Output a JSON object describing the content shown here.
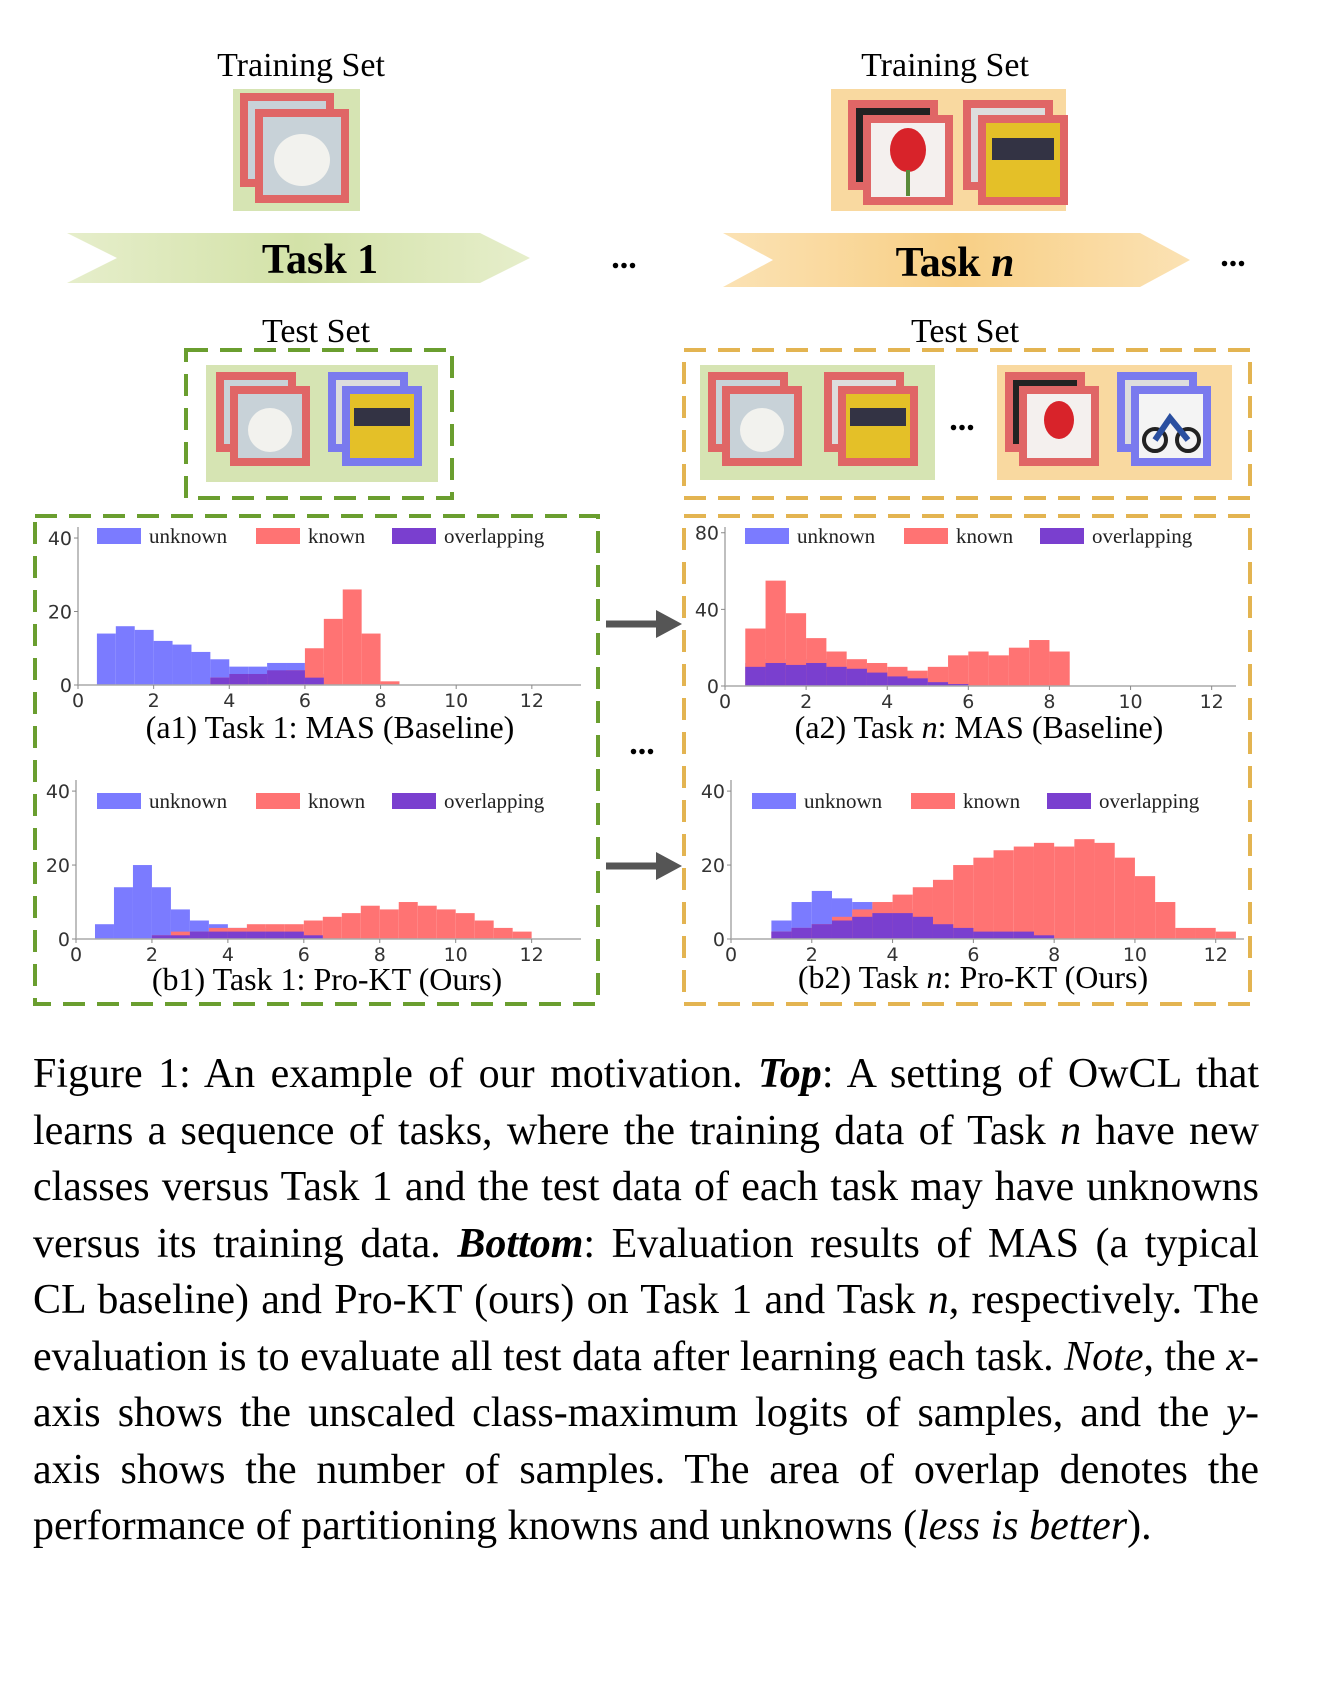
{
  "diagram": {
    "tasks": [
      {
        "name": [
          "Task 1"
        ],
        "training_set": "Training Set",
        "test_set": "Test Set"
      },
      {
        "name": [
          "Task ",
          "n"
        ],
        "training_set": "Training Set",
        "test_set": "Test Set"
      }
    ],
    "ellipsis": [
      "...",
      "...",
      "...",
      "..."
    ]
  },
  "chart_data": [
    {
      "type": "histogram",
      "title": [
        "(a1) Task 1: MAS (Baseline)"
      ],
      "bins": [
        0,
        0.5,
        1,
        1.5,
        2,
        2.5,
        3,
        3.5,
        4,
        4.5,
        5,
        5.5,
        6,
        6.5,
        7,
        7.5,
        8,
        8.5,
        9,
        9.5,
        10,
        10.5,
        11,
        11.5,
        12,
        12.5
      ],
      "series": [
        {
          "name": "unknown",
          "color": "#7b7bff",
          "values": [
            0,
            14,
            16,
            15,
            12,
            11,
            9,
            7,
            5,
            5,
            6,
            6,
            3,
            0,
            0,
            0,
            0,
            0,
            0,
            0,
            0,
            0,
            0,
            0,
            0
          ]
        },
        {
          "name": "known",
          "color": "#ff7373",
          "values": [
            0,
            0,
            0,
            0,
            0,
            0,
            0,
            2,
            2,
            2,
            2,
            4,
            10,
            18,
            26,
            14,
            1,
            0,
            0,
            0,
            0,
            0,
            0,
            0,
            0
          ]
        },
        {
          "name": "overlapping",
          "color": "#7a3fcf",
          "values": [
            0,
            0,
            0,
            0,
            0,
            0,
            0,
            2,
            3,
            3,
            4,
            4,
            2,
            0,
            0,
            0,
            0,
            0,
            0,
            0,
            0,
            0,
            0,
            0,
            0
          ]
        }
      ],
      "xlim": [
        0,
        13.3
      ],
      "xticks": [
        0,
        2,
        4,
        6,
        8,
        10,
        12
      ],
      "ylim": [
        0,
        43
      ],
      "yticks": [
        0,
        20,
        40
      ],
      "legend": "top"
    },
    {
      "type": "histogram",
      "title": [
        "(a2) Task ",
        "n",
        ": MAS (Baseline)"
      ],
      "bins": [
        0,
        0.5,
        1,
        1.5,
        2,
        2.5,
        3,
        3.5,
        4,
        4.5,
        5,
        5.5,
        6,
        6.5,
        7,
        7.5,
        8,
        8.5,
        9,
        9.5,
        10,
        10.5,
        11,
        11.5,
        12,
        12.5
      ],
      "series": [
        {
          "name": "unknown",
          "color": "#7b7bff",
          "values": [
            0,
            12,
            14,
            12,
            14,
            12,
            10,
            8,
            6,
            5,
            3,
            2,
            0,
            0,
            0,
            0,
            0,
            0,
            0,
            0,
            0,
            0,
            0,
            0,
            0
          ]
        },
        {
          "name": "known",
          "color": "#ff7373",
          "values": [
            0,
            30,
            55,
            38,
            25,
            18,
            14,
            12,
            10,
            8,
            10,
            16,
            18,
            16,
            20,
            24,
            18,
            0,
            0,
            0,
            0,
            0,
            0,
            0,
            0
          ]
        },
        {
          "name": "overlapping",
          "color": "#7a3fcf",
          "values": [
            0,
            10,
            12,
            11,
            12,
            10,
            9,
            7,
            5,
            4,
            2,
            1,
            0,
            0,
            0,
            0,
            0,
            0,
            0,
            0,
            0,
            0,
            0,
            0,
            0
          ]
        }
      ],
      "xlim": [
        0,
        12.6
      ],
      "xticks": [
        0,
        2,
        4,
        6,
        8,
        10,
        12
      ],
      "ylim": [
        0,
        83
      ],
      "yticks": [
        0,
        40,
        80
      ],
      "legend": "top"
    },
    {
      "type": "histogram",
      "title": [
        "(b1) Task 1: Pro-KT (Ours)"
      ],
      "bins": [
        0,
        0.5,
        1,
        1.5,
        2,
        2.5,
        3,
        3.5,
        4,
        4.5,
        5,
        5.5,
        6,
        6.5,
        7,
        7.5,
        8,
        8.5,
        9,
        9.5,
        10,
        10.5,
        11,
        11.5,
        12,
        12.5
      ],
      "series": [
        {
          "name": "unknown",
          "color": "#7b7bff",
          "values": [
            0,
            4,
            14,
            20,
            14,
            8,
            5,
            4,
            3,
            3,
            2,
            2,
            1,
            0,
            0,
            0,
            0,
            0,
            0,
            0,
            0,
            0,
            0,
            0,
            0
          ]
        },
        {
          "name": "known",
          "color": "#ff7373",
          "values": [
            0,
            0,
            0,
            0,
            1,
            2,
            2,
            3,
            3,
            4,
            4,
            4,
            5,
            6,
            7,
            9,
            8,
            10,
            9,
            8,
            7,
            5,
            3,
            2,
            0
          ]
        },
        {
          "name": "overlapping",
          "color": "#7a3fcf",
          "values": [
            0,
            0,
            0,
            0,
            1,
            1,
            2,
            2,
            2,
            2,
            2,
            2,
            1,
            0,
            0,
            0,
            0,
            0,
            0,
            0,
            0,
            0,
            0,
            0,
            0
          ]
        }
      ],
      "xlim": [
        0,
        13.3
      ],
      "xticks": [
        0,
        2,
        4,
        6,
        8,
        10,
        12
      ],
      "ylim": [
        0,
        43
      ],
      "yticks": [
        0,
        20,
        40
      ],
      "legend": "top"
    },
    {
      "type": "histogram",
      "title": [
        "(b2) Task ",
        "n",
        ": Pro-KT (Ours)"
      ],
      "bins": [
        0,
        0.5,
        1,
        1.5,
        2,
        2.5,
        3,
        3.5,
        4,
        4.5,
        5,
        5.5,
        6,
        6.5,
        7,
        7.5,
        8,
        8.5,
        9,
        9.5,
        10,
        10.5,
        11,
        11.5,
        12,
        12.5
      ],
      "series": [
        {
          "name": "unknown",
          "color": "#7b7bff",
          "values": [
            0,
            0,
            5,
            10,
            13,
            11,
            10,
            9,
            8,
            6,
            4,
            2,
            0,
            0,
            0,
            0,
            0,
            0,
            0,
            0,
            0,
            0,
            0,
            0,
            0
          ]
        },
        {
          "name": "known",
          "color": "#ff7373",
          "values": [
            0,
            0,
            2,
            3,
            4,
            6,
            8,
            10,
            12,
            14,
            16,
            20,
            22,
            24,
            25,
            26,
            25,
            27,
            26,
            22,
            17,
            10,
            3,
            3,
            2
          ]
        },
        {
          "name": "overlapping",
          "color": "#7a3fcf",
          "values": [
            0,
            0,
            2,
            3,
            4,
            5,
            6,
            7,
            7,
            6,
            4,
            3,
            2,
            2,
            2,
            1,
            0,
            0,
            0,
            0,
            0,
            0,
            0,
            0,
            0
          ]
        }
      ],
      "xlim": [
        0,
        12.7
      ],
      "xticks": [
        0,
        2,
        4,
        6,
        8,
        10,
        12
      ],
      "ylim": [
        0,
        43
      ],
      "yticks": [
        0,
        20,
        40
      ],
      "legend": "top"
    }
  ],
  "caption": [
    "Figure 1: An example of our motivation. ",
    "Top",
    ": A setting of OwCL that learns a sequence of tasks, where the training data of Task ",
    "n",
    " have new classes versus Task 1 and the test data of each task may have unknowns versus its training data. ",
    "Bottom",
    ": Evaluation results of MAS (a typical CL baseline) and Pro-KT (ours) on Task 1 and Task ",
    "n",
    ", respectively. The evaluation is to evaluate all test data after learning each task. ",
    "Note",
    ", the ",
    "x",
    "-axis shows the unscaled class-maximum logits of samples, and the ",
    "y",
    "-axis shows the number of samples. The area of overlap denotes the performance of partitioning knowns and unknowns (",
    "less is better",
    ")."
  ]
}
